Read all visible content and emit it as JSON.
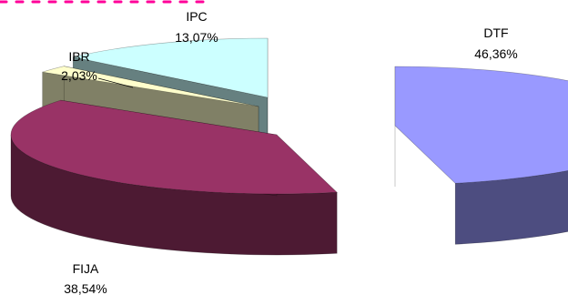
{
  "chart_data": {
    "type": "pie",
    "subtype": "3d-exploded",
    "slices": [
      {
        "label": "DTF",
        "value_text": "46,36%",
        "value": 46.36,
        "color": "#9999ff",
        "side_color": "#4d4d80"
      },
      {
        "label": "FIJA",
        "value_text": "38,54%",
        "value": 38.54,
        "color": "#993366",
        "side_color": "#4d1a33"
      },
      {
        "label": "IBR",
        "value_text": "2,03%",
        "value": 2.03,
        "color": "#ffffcc",
        "side_color": "#808066"
      },
      {
        "label": "IPC",
        "value_text": "13,07%",
        "value": 13.07,
        "color": "#ccffff",
        "side_color": "#668080"
      }
    ]
  }
}
